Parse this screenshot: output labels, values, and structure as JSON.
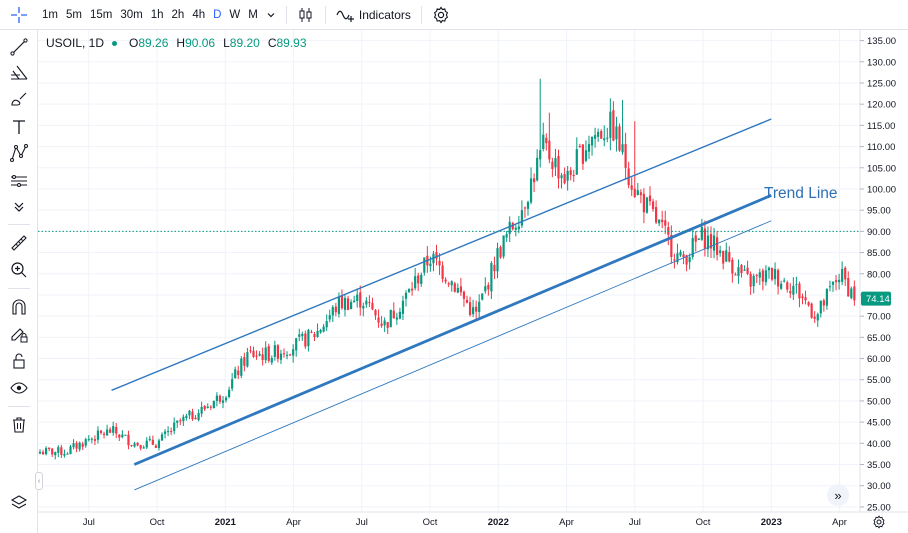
{
  "toolbar": {
    "timeframes": [
      "1m",
      "5m",
      "15m",
      "30m",
      "1h",
      "2h",
      "4h",
      "D",
      "W",
      "M"
    ],
    "active_timeframe": "D",
    "indicators_label": "Indicators"
  },
  "legend": {
    "symbol": "USOIL, 1D",
    "open_label": "O",
    "open": "89.26",
    "high_label": "H",
    "high": "90.06",
    "low_label": "L",
    "low": "89.20",
    "close_label": "C",
    "close": "89.93"
  },
  "annotation": {
    "trend_line_label": "Trend Line"
  },
  "price_tag": {
    "value": "74.14",
    "color": "#089981"
  },
  "colors": {
    "up": "#089981",
    "down": "#f23645",
    "trend": "#2f78bf",
    "crosshair_h": "#089981"
  },
  "chart_data": {
    "type": "candlestick",
    "symbol": "USOIL",
    "interval": "1D",
    "y_ticks": [
      "135.00",
      "130.00",
      "125.00",
      "120.00",
      "115.00",
      "110.00",
      "105.00",
      "100.00",
      "95.00",
      "90.00",
      "85.00",
      "80.00",
      "75.00",
      "70.00",
      "65.00",
      "60.00",
      "55.00",
      "50.00",
      "45.00",
      "40.00",
      "35.00",
      "30.00",
      "25.00"
    ],
    "ylim": [
      25,
      135
    ],
    "x_ticks": [
      {
        "label": "Jul",
        "bold": false
      },
      {
        "label": "Oct",
        "bold": false
      },
      {
        "label": "2021",
        "bold": true
      },
      {
        "label": "Apr",
        "bold": false
      },
      {
        "label": "Jul",
        "bold": false
      },
      {
        "label": "Oct",
        "bold": false
      },
      {
        "label": "2022",
        "bold": true
      },
      {
        "label": "Apr",
        "bold": false
      },
      {
        "label": "Jul",
        "bold": false
      },
      {
        "label": "Oct",
        "bold": false
      },
      {
        "label": "2023",
        "bold": true
      },
      {
        "label": "Apr",
        "bold": false
      }
    ],
    "horizontal_line": 90.0,
    "last_price": 74.14,
    "close_series": [
      {
        "t": "2020-06",
        "v": 38
      },
      {
        "t": "2020-07",
        "v": 41
      },
      {
        "t": "2020-08",
        "v": 43
      },
      {
        "t": "2020-09",
        "v": 40
      },
      {
        "t": "2020-10",
        "v": 40
      },
      {
        "t": "2020-11",
        "v": 45
      },
      {
        "t": "2020-12",
        "v": 48
      },
      {
        "t": "2021-01",
        "v": 52
      },
      {
        "t": "2021-02",
        "v": 61
      },
      {
        "t": "2021-03",
        "v": 61
      },
      {
        "t": "2021-04",
        "v": 63
      },
      {
        "t": "2021-05",
        "v": 66
      },
      {
        "t": "2021-06",
        "v": 73
      },
      {
        "t": "2021-07",
        "v": 74
      },
      {
        "t": "2021-08",
        "v": 68
      },
      {
        "t": "2021-09",
        "v": 75
      },
      {
        "t": "2021-10",
        "v": 84
      },
      {
        "t": "2021-11",
        "v": 78
      },
      {
        "t": "2021-12",
        "v": 70
      },
      {
        "t": "2022-01",
        "v": 85
      },
      {
        "t": "2022-02",
        "v": 95
      },
      {
        "t": "2022-03",
        "v": 110
      },
      {
        "t": "2022-04",
        "v": 102
      },
      {
        "t": "2022-05",
        "v": 112
      },
      {
        "t": "2022-06",
        "v": 115
      },
      {
        "t": "2022-07",
        "v": 100
      },
      {
        "t": "2022-08",
        "v": 92
      },
      {
        "t": "2022-09",
        "v": 83
      },
      {
        "t": "2022-10",
        "v": 89
      },
      {
        "t": "2022-11",
        "v": 84
      },
      {
        "t": "2022-12",
        "v": 78
      },
      {
        "t": "2023-01",
        "v": 80
      },
      {
        "t": "2023-02",
        "v": 77
      },
      {
        "t": "2023-03",
        "v": 70
      },
      {
        "t": "2023-04",
        "v": 80
      },
      {
        "t": "2023-05",
        "v": 72
      }
    ],
    "trend_lines": [
      {
        "role": "upper channel",
        "from": {
          "t": "2020-08",
          "v": 52.5
        },
        "to": {
          "t": "2023-01",
          "v": 116.5
        }
      },
      {
        "role": "trend line",
        "from": {
          "t": "2020-09",
          "v": 35
        },
        "to": {
          "t": "2023-01",
          "v": 98.5
        }
      },
      {
        "role": "lower channel",
        "from": {
          "t": "2020-09",
          "v": 29
        },
        "to": {
          "t": "2023-01",
          "v": 92.5
        }
      }
    ]
  }
}
